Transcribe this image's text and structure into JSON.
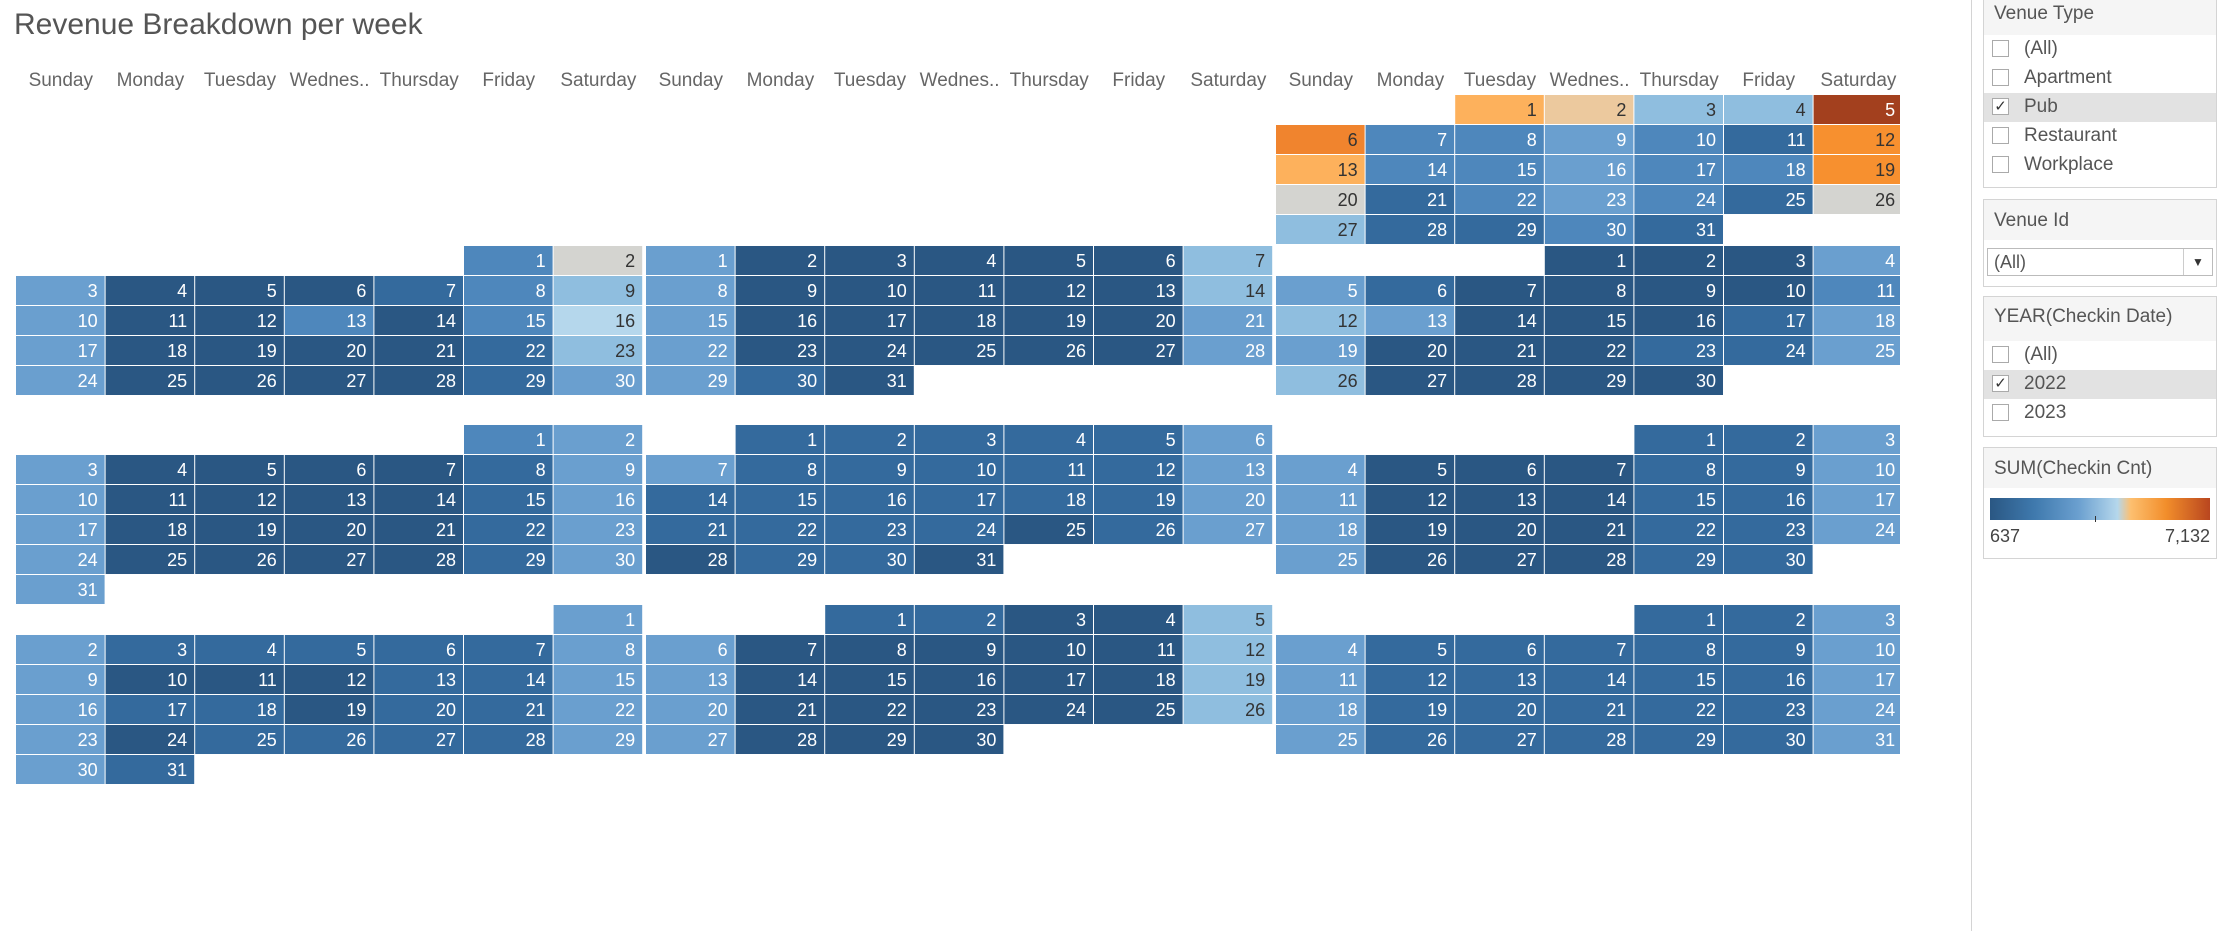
{
  "title": "Revenue Breakdown per week",
  "day_headers": [
    "Sunday",
    "Monday",
    "Tuesday",
    "Wednes..",
    "Thursday",
    "Friday",
    "Saturday"
  ],
  "filters": {
    "venue_type": {
      "title": "Venue Type",
      "options": [
        {
          "label": "(All)",
          "checked": false
        },
        {
          "label": "Apartment",
          "checked": false
        },
        {
          "label": "Pub",
          "checked": true
        },
        {
          "label": "Restaurant",
          "checked": false
        },
        {
          "label": "Workplace",
          "checked": false
        }
      ]
    },
    "venue_id": {
      "title": "Venue Id",
      "value": "(All)"
    },
    "year": {
      "title": "YEAR(Checkin Date)",
      "options": [
        {
          "label": "(All)",
          "checked": false
        },
        {
          "label": "2022",
          "checked": true
        },
        {
          "label": "2023",
          "checked": false
        }
      ]
    }
  },
  "legend": {
    "title": "SUM(Checkin Cnt)",
    "min_label": "637",
    "max_label": "7,132",
    "min": 637,
    "max": 7132
  },
  "colors": {
    "d1": "#2a5783",
    "d2": "#346a9d",
    "d3": "#4e87bc",
    "d4": "#6a9fcf",
    "l1": "#8fbedf",
    "l2": "#b5d7ec",
    "g": "#d4d4d0",
    "b1": "#ecc99e",
    "o1": "#fdb15c",
    "o2": "#f0842e",
    "o3": "#f7902f",
    "r1": "#a3401e"
  },
  "chart_data": {
    "type": "heatmap",
    "title": "Revenue Breakdown per week",
    "value_field": "SUM(Checkin Cnt)",
    "months": [
      {
        "start_dow": 2,
        "days": 31,
        "colors": [
          "o1",
          "b1",
          "l1",
          "l1",
          "r1",
          "o2",
          "d3",
          "d3",
          "d4",
          "d3",
          "d2",
          "o3",
          "o1",
          "d3",
          "d3",
          "d4",
          "d3",
          "d3",
          "o3",
          "g",
          "d2",
          "d3",
          "d4",
          "d3",
          "d2",
          "g",
          "l1",
          "d2",
          "d2",
          "d3",
          "d2"
        ]
      },
      {
        "start_dow": 5,
        "days": 30,
        "colors": [
          "d3",
          "g",
          "d4",
          "d1",
          "d1",
          "d1",
          "d2",
          "d3",
          "l1",
          "d4",
          "d1",
          "d1",
          "d3",
          "d1",
          "d3",
          "l2",
          "d4",
          "d1",
          "d1",
          "d1",
          "d1",
          "d2",
          "l1",
          "d4",
          "d1",
          "d1",
          "d1",
          "d1",
          "d2",
          "d4"
        ]
      },
      {
        "start_dow": 0,
        "days": 31,
        "colors": [
          "d4",
          "d1",
          "d1",
          "d1",
          "d1",
          "d1",
          "l1",
          "d4",
          "d1",
          "d1",
          "d1",
          "d1",
          "d1",
          "l1",
          "d4",
          "d1",
          "d1",
          "d1",
          "d1",
          "d1",
          "d4",
          "d4",
          "d1",
          "d1",
          "d1",
          "d1",
          "d1",
          "d4",
          "d4",
          "d2",
          "d1"
        ]
      },
      {
        "start_dow": 3,
        "days": 30,
        "colors": [
          "d1",
          "d1",
          "d1",
          "d4",
          "d4",
          "d2",
          "d1",
          "d1",
          "d1",
          "d1",
          "d3",
          "l1",
          "d4",
          "d1",
          "d1",
          "d1",
          "d2",
          "d4",
          "d4",
          "d1",
          "d1",
          "d1",
          "d2",
          "d2",
          "d4",
          "l1",
          "d1",
          "d1",
          "d1",
          "d1"
        ]
      },
      {
        "start_dow": 5,
        "days": 31,
        "colors": [
          "d3",
          "d4",
          "d4",
          "d1",
          "d1",
          "d1",
          "d1",
          "d2",
          "d4",
          "d4",
          "d1",
          "d1",
          "d1",
          "d1",
          "d2",
          "d4",
          "d4",
          "d1",
          "d1",
          "d1",
          "d1",
          "d2",
          "d4",
          "d4",
          "d1",
          "d1",
          "d1",
          "d1",
          "d2",
          "d4",
          "d4"
        ]
      },
      {
        "start_dow": 1,
        "days": 31,
        "colors": [
          "d2",
          "d2",
          "d2",
          "d2",
          "d2",
          "d4",
          "d4",
          "d2",
          "d2",
          "d2",
          "d2",
          "d2",
          "d4",
          "d2",
          "d2",
          "d2",
          "d2",
          "d2",
          "d2",
          "d4",
          "d2",
          "d2",
          "d2",
          "d2",
          "d1",
          "d2",
          "d4",
          "d1",
          "d2",
          "d2",
          "d1"
        ]
      },
      {
        "start_dow": 4,
        "days": 30,
        "colors": [
          "d2",
          "d2",
          "d4",
          "d4",
          "d1",
          "d1",
          "d1",
          "d2",
          "d2",
          "d4",
          "d4",
          "d1",
          "d1",
          "d1",
          "d2",
          "d2",
          "d4",
          "d4",
          "d1",
          "d1",
          "d1",
          "d2",
          "d2",
          "d4",
          "d4",
          "d1",
          "d1",
          "d1",
          "d2",
          "d2"
        ]
      },
      {
        "start_dow": 6,
        "days": 31,
        "colors": [
          "d4",
          "d4",
          "d2",
          "d1",
          "d1",
          "d1",
          "d2",
          "d4",
          "d4",
          "d2",
          "d2",
          "d2",
          "d2",
          "d2",
          "d4",
          "d4",
          "d1",
          "d2",
          "d1",
          "d2",
          "d2",
          "d4",
          "d4",
          "d1",
          "d2",
          "d2",
          "d2",
          "d2",
          "d4",
          "d4",
          "d3"
        ]
      },
      {
        "start_dow": 2,
        "days": 30,
        "colors": [
          "d1",
          "d1",
          "d1",
          "d1",
          "d4",
          "d4",
          "d2",
          "d2",
          "d1",
          "d1",
          "d1",
          "d3",
          "d4",
          "d1",
          "d1",
          "d1",
          "d1",
          "d2",
          "l1",
          "d4",
          "d1",
          "d1",
          "d2",
          "d2",
          "d1",
          "l1",
          "d4",
          "d1",
          "d1",
          "d1"
        ]
      },
      {
        "start_dow": 6,
        "days": 31,
        "colors": [
          "d4",
          "d4",
          "d2",
          "d2",
          "d2",
          "d2",
          "d2",
          "d4",
          "d4",
          "d1",
          "d1",
          "d1",
          "d2",
          "d2",
          "d4",
          "d4",
          "d2",
          "d2",
          "d1",
          "d2",
          "d2",
          "d4",
          "d4",
          "d1",
          "d2",
          "d2",
          "d2",
          "d2",
          "d4",
          "d4",
          "d2"
        ]
      },
      {
        "start_dow": 2,
        "days": 30,
        "colors": [
          "d2",
          "d2",
          "d1",
          "d1",
          "l1",
          "d4",
          "d1",
          "d1",
          "d1",
          "d1",
          "d1",
          "l1",
          "d4",
          "d1",
          "d1",
          "d1",
          "d1",
          "d1",
          "l1",
          "d4",
          "d1",
          "d1",
          "d1",
          "d1",
          "d1",
          "l1",
          "d4",
          "d1",
          "d1",
          "d1"
        ]
      },
      {
        "start_dow": 4,
        "days": 31,
        "colors": [
          "d2",
          "d2",
          "d4",
          "d4",
          "d2",
          "d2",
          "d2",
          "d2",
          "d2",
          "d4",
          "d4",
          "d2",
          "d2",
          "d2",
          "d2",
          "d2",
          "d4",
          "d4",
          "d2",
          "d2",
          "d2",
          "d2",
          "d2",
          "d4",
          "d4",
          "d2",
          "d2",
          "d2",
          "d2",
          "d2",
          "d4"
        ]
      }
    ]
  }
}
